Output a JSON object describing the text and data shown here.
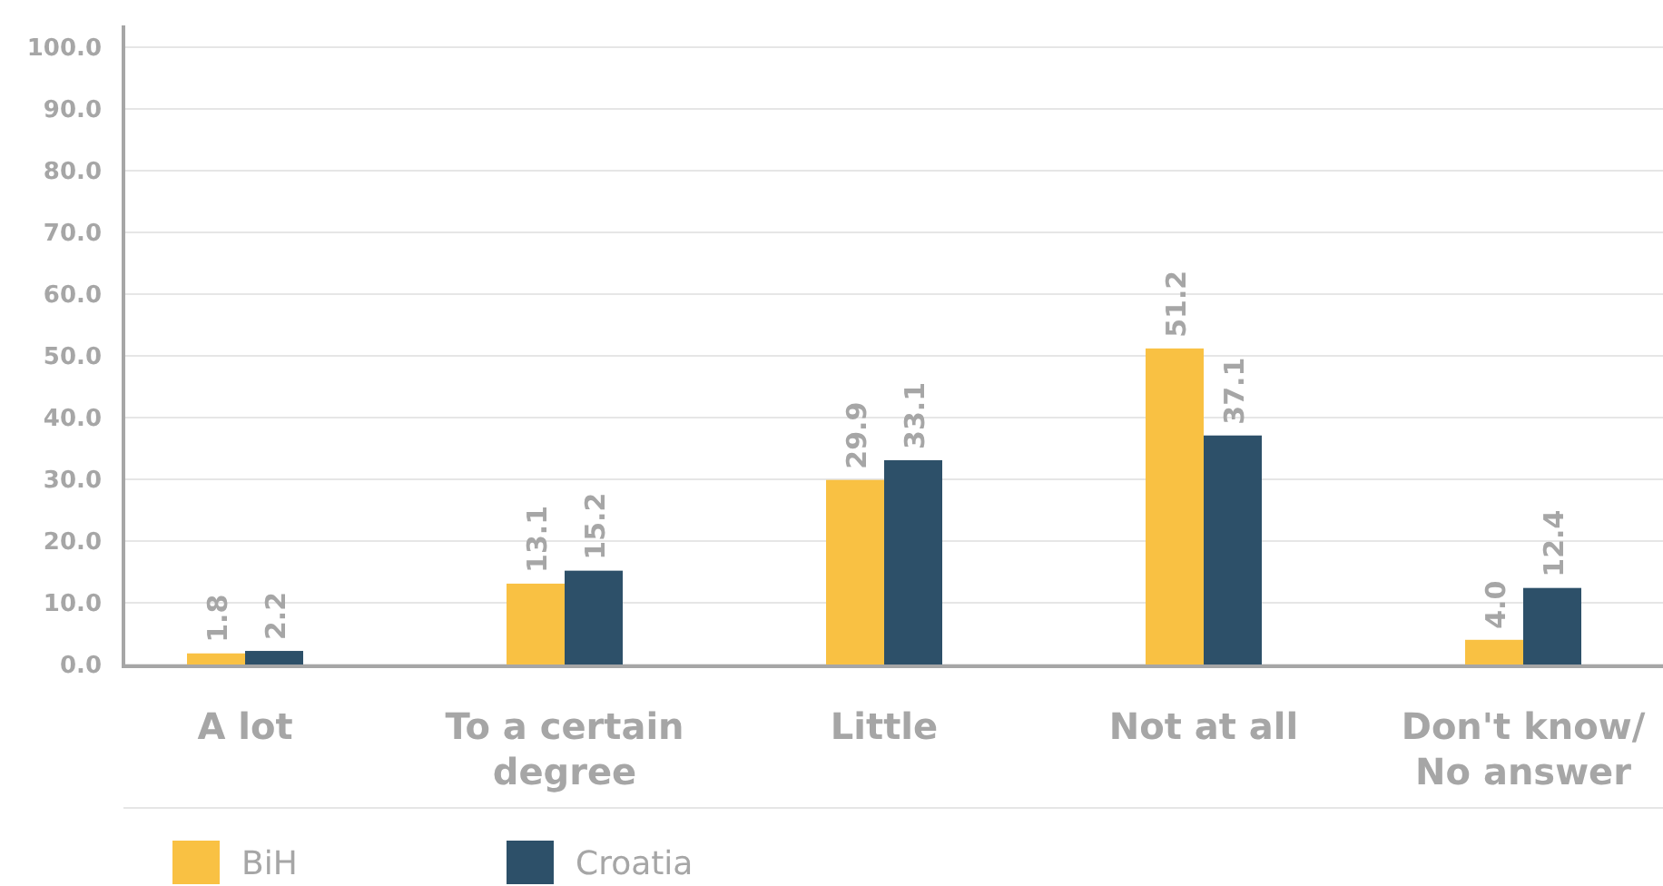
{
  "chart_data": {
    "type": "bar",
    "categories": [
      "A lot",
      "To a certain degree",
      "Little",
      "Not at all",
      "Don't know/ No answer"
    ],
    "series": [
      {
        "name": "BiH",
        "color": "#f9c143",
        "values": [
          1.8,
          13.1,
          29.9,
          51.2,
          4.0
        ],
        "value_labels": [
          "1.8",
          "13.1",
          "29.9",
          "51.2",
          "4.0"
        ]
      },
      {
        "name": "Croatia",
        "color": "#2d5069",
        "values": [
          2.2,
          15.2,
          33.1,
          37.1,
          12.4
        ],
        "value_labels": [
          "2.2",
          "15.2",
          "33.1",
          "37.1",
          "12.4"
        ]
      }
    ],
    "ylim": [
      0,
      100
    ],
    "yticks": [
      {
        "value": 0,
        "label": "0.0"
      },
      {
        "value": 10,
        "label": "10.0"
      },
      {
        "value": 20,
        "label": "20.0"
      },
      {
        "value": 30,
        "label": "30.0"
      },
      {
        "value": 40,
        "label": "40.0"
      },
      {
        "value": 50,
        "label": "50.0"
      },
      {
        "value": 60,
        "label": "60.0"
      },
      {
        "value": 70,
        "label": "70.0"
      },
      {
        "value": 80,
        "label": "80.0"
      },
      {
        "value": 90,
        "label": "90.0"
      },
      {
        "value": 100,
        "label": "100.0"
      }
    ],
    "grid": "y",
    "legend": "bottom left"
  }
}
